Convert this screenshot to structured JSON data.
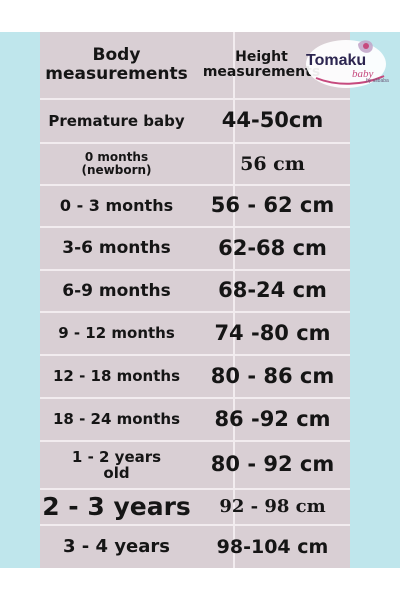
{
  "header": {
    "col1": "Body\nmeasurements",
    "col2": "Height\nmeasurements"
  },
  "brand": {
    "name": "Tomaku",
    "sub": "baby",
    "by": "by alibaba"
  },
  "rows": [
    {
      "age": "Premature baby",
      "height": "44-50cm"
    },
    {
      "age": "0 months\n(newborn)",
      "height": "56 cm"
    },
    {
      "age": "0 - 3 months",
      "height": "56 - 62 cm"
    },
    {
      "age": "3-6 months",
      "height": "62-68 cm"
    },
    {
      "age": "6-9 months",
      "height": "68-24 cm"
    },
    {
      "age": "9 - 12 months",
      "height": "74 -80 cm"
    },
    {
      "age": "12 - 18 months",
      "height": "80 - 86 cm"
    },
    {
      "age": "18 - 24 months",
      "height": "86 -92 cm"
    },
    {
      "age": "1 - 2 years\nold",
      "height": "80 - 92 cm"
    },
    {
      "age": "2 - 3 years",
      "height": "92 - 98 cm"
    },
    {
      "age": "3 - 4 years",
      "height": "98-104 cm"
    }
  ],
  "colors": {
    "table_bg": "#d9cfd4",
    "side_band": "#bfe6ec",
    "grid_line": "#f2ecef",
    "text": "#151515"
  }
}
